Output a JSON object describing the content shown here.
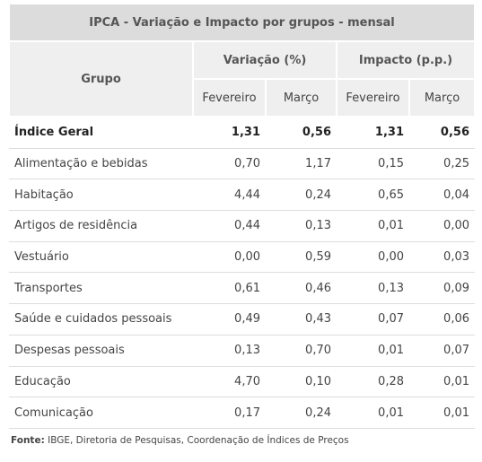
{
  "table": {
    "title": "IPCA - Variação e Impacto por grupos - mensal",
    "group_header": "Grupo",
    "column_groups": [
      "Variação (%)",
      "Impacto (p.p.)"
    ],
    "subheaders": [
      "Fevereiro",
      "Março",
      "Fevereiro",
      "Março"
    ],
    "rows": [
      [
        "Índice Geral",
        "1,31",
        "0,56",
        "1,31",
        "0,56"
      ],
      [
        "Alimentação e bebidas",
        "0,70",
        "1,17",
        "0,15",
        "0,25"
      ],
      [
        "Habitação",
        "4,44",
        "0,24",
        "0,65",
        "0,04"
      ],
      [
        "Artigos de residência",
        "0,44",
        "0,13",
        "0,01",
        "0,00"
      ],
      [
        "Vestuário",
        "0,00",
        "0,59",
        "0,00",
        "0,03"
      ],
      [
        "Transportes",
        "0,61",
        "0,46",
        "0,13",
        "0,09"
      ],
      [
        "Saúde e cuidados pessoais",
        "0,49",
        "0,43",
        "0,07",
        "0,06"
      ],
      [
        "Despesas pessoais",
        "0,13",
        "0,70",
        "0,01",
        "0,07"
      ],
      [
        "Educação",
        "4,70",
        "0,10",
        "0,28",
        "0,01"
      ],
      [
        "Comunicação",
        "0,17",
        "0,24",
        "0,01",
        "0,01"
      ]
    ]
  },
  "source": {
    "label": "Fonte:",
    "text": "IBGE, Diretoria de Pesquisas, Coordenação de Índices de Preços"
  }
}
